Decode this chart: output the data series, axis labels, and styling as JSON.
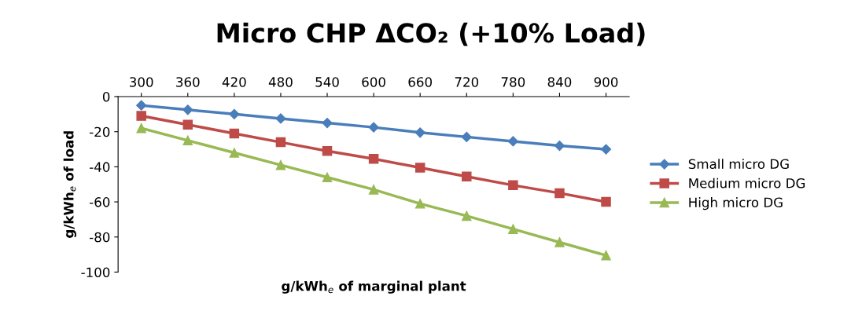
{
  "chart_data": {
    "type": "line",
    "title": "Micro CHP ΔCO₂ (+10% Load)",
    "xlabel": "g/kWh$_{e}$ of marginal plant",
    "ylabel": "g/kWh$_{e}$ of load",
    "categories": [
      "300",
      "360",
      "420",
      "480",
      "540",
      "600",
      "660",
      "720",
      "780",
      "840",
      "900"
    ],
    "series": [
      {
        "name": "Small micro DG",
        "color": "#4a7ebb",
        "marker": "diamond",
        "values": [
          -5,
          -7.5,
          -10,
          -12.5,
          -15,
          -17.5,
          -20.5,
          -23,
          -25.5,
          -28,
          -30
        ]
      },
      {
        "name": "Medium micro DG",
        "color": "#be4b48",
        "marker": "square",
        "values": [
          -11,
          -16,
          -21,
          -26,
          -31,
          -35.5,
          -40.5,
          -45.5,
          -50.5,
          -55,
          -60
        ]
      },
      {
        "name": "High micro DG",
        "color": "#98b954",
        "marker": "triangle",
        "values": [
          -18,
          -25,
          -32,
          -39,
          -46,
          -53,
          -61,
          -68,
          -75.5,
          -83,
          -90.5
        ]
      }
    ],
    "ylim": [
      -100,
      0
    ],
    "yticks": [
      -100,
      -80,
      -60,
      -40,
      -20,
      0
    ],
    "legend": "right",
    "line_style": "solid"
  }
}
